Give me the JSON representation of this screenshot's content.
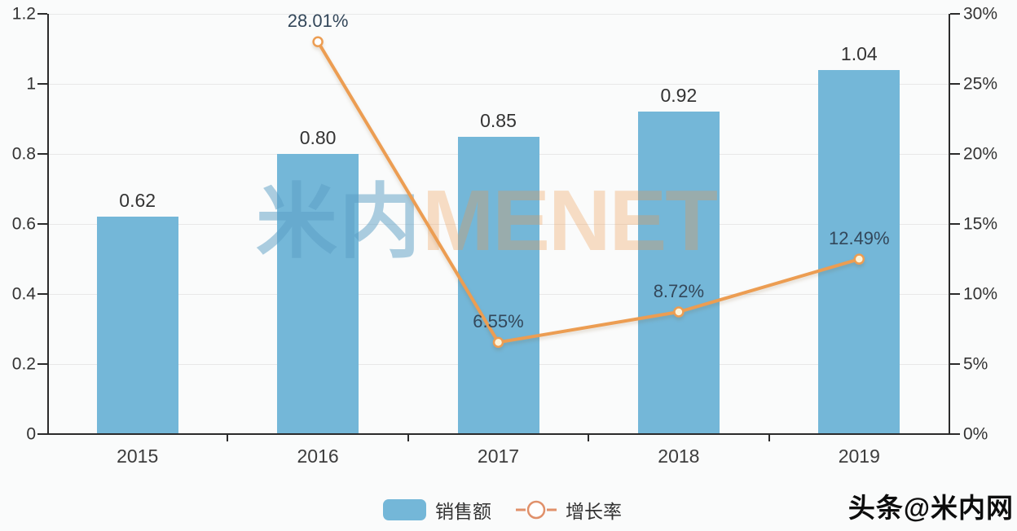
{
  "chart_data": {
    "type": "combo-bar-line",
    "categories": [
      "2015",
      "2016",
      "2017",
      "2018",
      "2019"
    ],
    "series": [
      {
        "name": "销售额",
        "type": "bar",
        "values": [
          0.62,
          0.8,
          0.85,
          0.92,
          1.04
        ],
        "labels": [
          "0.62",
          "0.80",
          "0.85",
          "0.92",
          "1.04"
        ],
        "axis": "left",
        "color": "#74b7d8"
      },
      {
        "name": "增长率",
        "type": "line",
        "values": [
          null,
          28.01,
          6.55,
          8.72,
          12.49
        ],
        "labels": [
          null,
          "28.01%",
          "6.55%",
          "8.72%",
          "12.49%"
        ],
        "unit": "%",
        "axis": "right",
        "color": "#ec9d52"
      }
    ],
    "left_axis": {
      "min": 0,
      "max": 1.2,
      "ticks": [
        "1.2",
        "1",
        "0.8",
        "0.6",
        "0.4",
        "0.2",
        "0"
      ]
    },
    "right_axis": {
      "min": 0,
      "max": 30,
      "ticks": [
        "30%",
        "25%",
        "20%",
        "15%",
        "10%",
        "5%",
        "0%"
      ]
    },
    "grid": true,
    "legend_position": "bottom-center",
    "title": ""
  },
  "legend": {
    "bar_label": "销售额",
    "line_label": "增长率"
  },
  "watermark": {
    "cjk": "米内",
    "latin": "MENET"
  },
  "credit": {
    "text": "头条@米内网"
  },
  "colors": {
    "bar": "#74b7d8",
    "line": "#ec9d52",
    "marker_fill": "#fdf3d8",
    "marker_first_fill": "#ffffff",
    "axis": "#2b2b2b",
    "grid": "#e8e8e8",
    "bar_label": "#333333",
    "pct_label": "#33475a",
    "background": "#fafbfb"
  }
}
